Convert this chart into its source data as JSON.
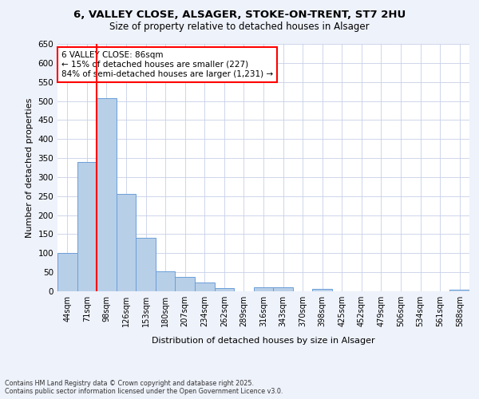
{
  "title_line1": "6, VALLEY CLOSE, ALSAGER, STOKE-ON-TRENT, ST7 2HU",
  "title_line2": "Size of property relative to detached houses in Alsager",
  "xlabel": "Distribution of detached houses by size in Alsager",
  "ylabel": "Number of detached properties",
  "footnote": "Contains HM Land Registry data © Crown copyright and database right 2025.\nContains public sector information licensed under the Open Government Licence v3.0.",
  "categories": [
    "44sqm",
    "71sqm",
    "98sqm",
    "126sqm",
    "153sqm",
    "180sqm",
    "207sqm",
    "234sqm",
    "262sqm",
    "289sqm",
    "316sqm",
    "343sqm",
    "370sqm",
    "398sqm",
    "425sqm",
    "452sqm",
    "479sqm",
    "506sqm",
    "534sqm",
    "561sqm",
    "588sqm"
  ],
  "values": [
    100,
    340,
    507,
    255,
    140,
    53,
    38,
    24,
    9,
    0,
    10,
    10,
    0,
    7,
    0,
    0,
    0,
    0,
    0,
    0,
    5
  ],
  "bar_color": "#b8cfe8",
  "bar_edge_color": "#6a9fd8",
  "vline_x": 1.5,
  "vline_color": "red",
  "annotation_text": "6 VALLEY CLOSE: 86sqm\n← 15% of detached houses are smaller (227)\n84% of semi-detached houses are larger (1,231) →",
  "annotation_box_color": "white",
  "annotation_box_edge": "red",
  "ylim": [
    0,
    650
  ],
  "yticks": [
    0,
    50,
    100,
    150,
    200,
    250,
    300,
    350,
    400,
    450,
    500,
    550,
    600,
    650
  ],
  "bg_color": "#eef2fb",
  "plot_bg": "white",
  "grid_color": "#c8d0e8"
}
